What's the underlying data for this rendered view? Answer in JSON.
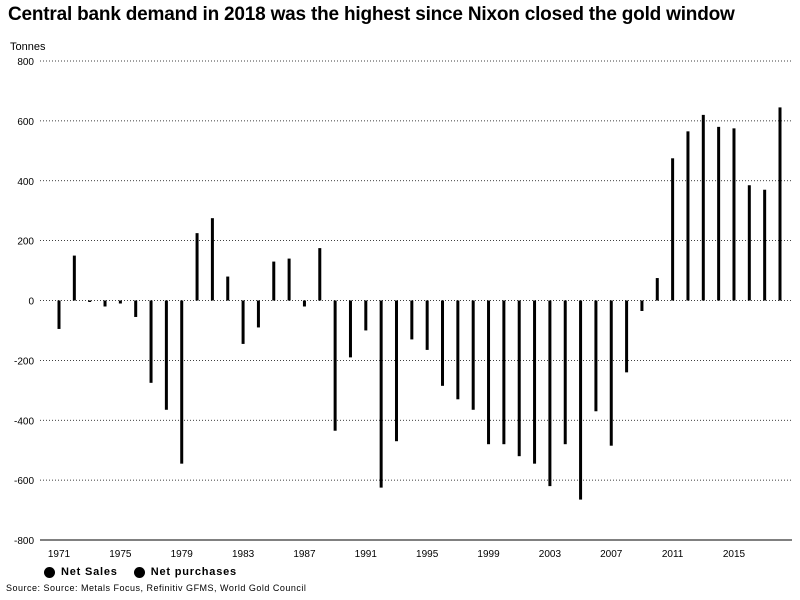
{
  "chart_data": {
    "type": "bar",
    "title": "Central bank demand in 2018 was the highest since Nixon closed the gold window",
    "ylabel": "Tonnes",
    "xlabel": "",
    "ylim": [
      -800,
      800
    ],
    "xlim": [
      1971,
      2018
    ],
    "y_ticks": [
      800,
      600,
      400,
      200,
      0,
      -200,
      -400,
      -600,
      -800
    ],
    "x_ticks": [
      1971,
      1975,
      1979,
      1983,
      1987,
      1991,
      1995,
      1999,
      2003,
      2007,
      2011,
      2015
    ],
    "grid": "horizontal dotted",
    "legend_position": "bottom-left",
    "bar_color": "#000000",
    "series": [
      {
        "name": "Net Sales",
        "color": "#000000"
      },
      {
        "name": "Net purchases",
        "color": "#000000"
      }
    ],
    "x": [
      1971,
      1972,
      1973,
      1974,
      1975,
      1976,
      1977,
      1978,
      1979,
      1980,
      1981,
      1982,
      1983,
      1984,
      1985,
      1986,
      1987,
      1988,
      1989,
      1990,
      1991,
      1992,
      1993,
      1994,
      1995,
      1996,
      1997,
      1998,
      1999,
      2000,
      2001,
      2002,
      2003,
      2004,
      2005,
      2006,
      2007,
      2008,
      2009,
      2010,
      2011,
      2012,
      2013,
      2014,
      2015,
      2016,
      2017,
      2018
    ],
    "values": [
      -95,
      150,
      -5,
      -20,
      -10,
      -55,
      -275,
      -365,
      -545,
      225,
      275,
      80,
      -145,
      -90,
      130,
      140,
      -20,
      175,
      -435,
      -190,
      -100,
      -625,
      -470,
      -130,
      -165,
      -285,
      -330,
      -365,
      -480,
      -480,
      -520,
      -545,
      -620,
      -480,
      -665,
      -370,
      -485,
      -240,
      -35,
      75,
      475,
      565,
      620,
      580,
      575,
      385,
      370,
      645
    ]
  },
  "legend": {
    "items": [
      {
        "label": "Net Sales"
      },
      {
        "label": "Net purchases"
      }
    ]
  },
  "source": "Source: Source: Metals Focus, Refinitiv GFMS, World Gold Council"
}
